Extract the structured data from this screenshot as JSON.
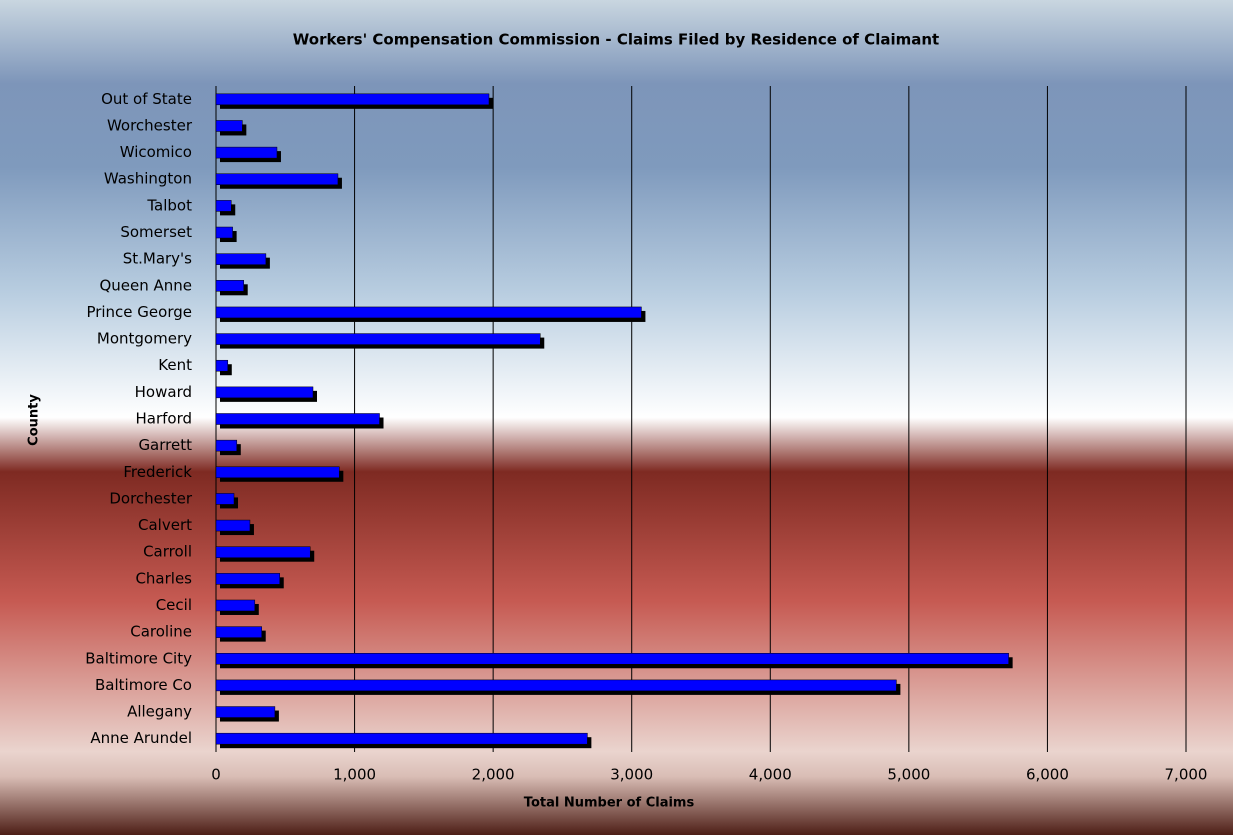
{
  "chart_data": {
    "type": "bar",
    "orientation": "horizontal",
    "title": "Workers' Compensation Commission - Claims Filed by Residence of Claimant",
    "x_label": "Total Number of Claims",
    "y_label": "County",
    "categories": [
      "Out of State",
      "Worchester",
      "Wicomico",
      "Washington",
      "Talbot",
      "Somerset",
      "St.Mary's",
      "Queen Anne",
      "Prince George",
      "Montgomery",
      "Kent",
      "Howard",
      "Harford",
      "Garrett",
      "Frederick",
      "Dorchester",
      "Calvert",
      "Carroll",
      "Charles",
      "Cecil",
      "Caroline",
      "Baltimore City",
      "Baltimore Co",
      "Allegany",
      "Anne Arundel"
    ],
    "values": [
      1970,
      190,
      440,
      880,
      110,
      120,
      360,
      200,
      3070,
      2340,
      85,
      700,
      1180,
      150,
      890,
      130,
      245,
      680,
      460,
      280,
      330,
      5720,
      4910,
      425,
      2680
    ],
    "color": "#0000ff",
    "xlim": [
      0,
      7000
    ],
    "xticks": [
      0,
      {
        "value": 1000,
        "label": "1,000"
      },
      {
        "value": 2000,
        "label": "2,000"
      },
      {
        "value": 3000,
        "label": "3,000"
      },
      {
        "value": 4000,
        "label": "4,000"
      },
      {
        "value": 5000,
        "label": "5,000"
      },
      {
        "value": 6000,
        "label": "6,000"
      },
      {
        "value": 7000,
        "label": "7,000"
      }
    ],
    "grid": true
  }
}
